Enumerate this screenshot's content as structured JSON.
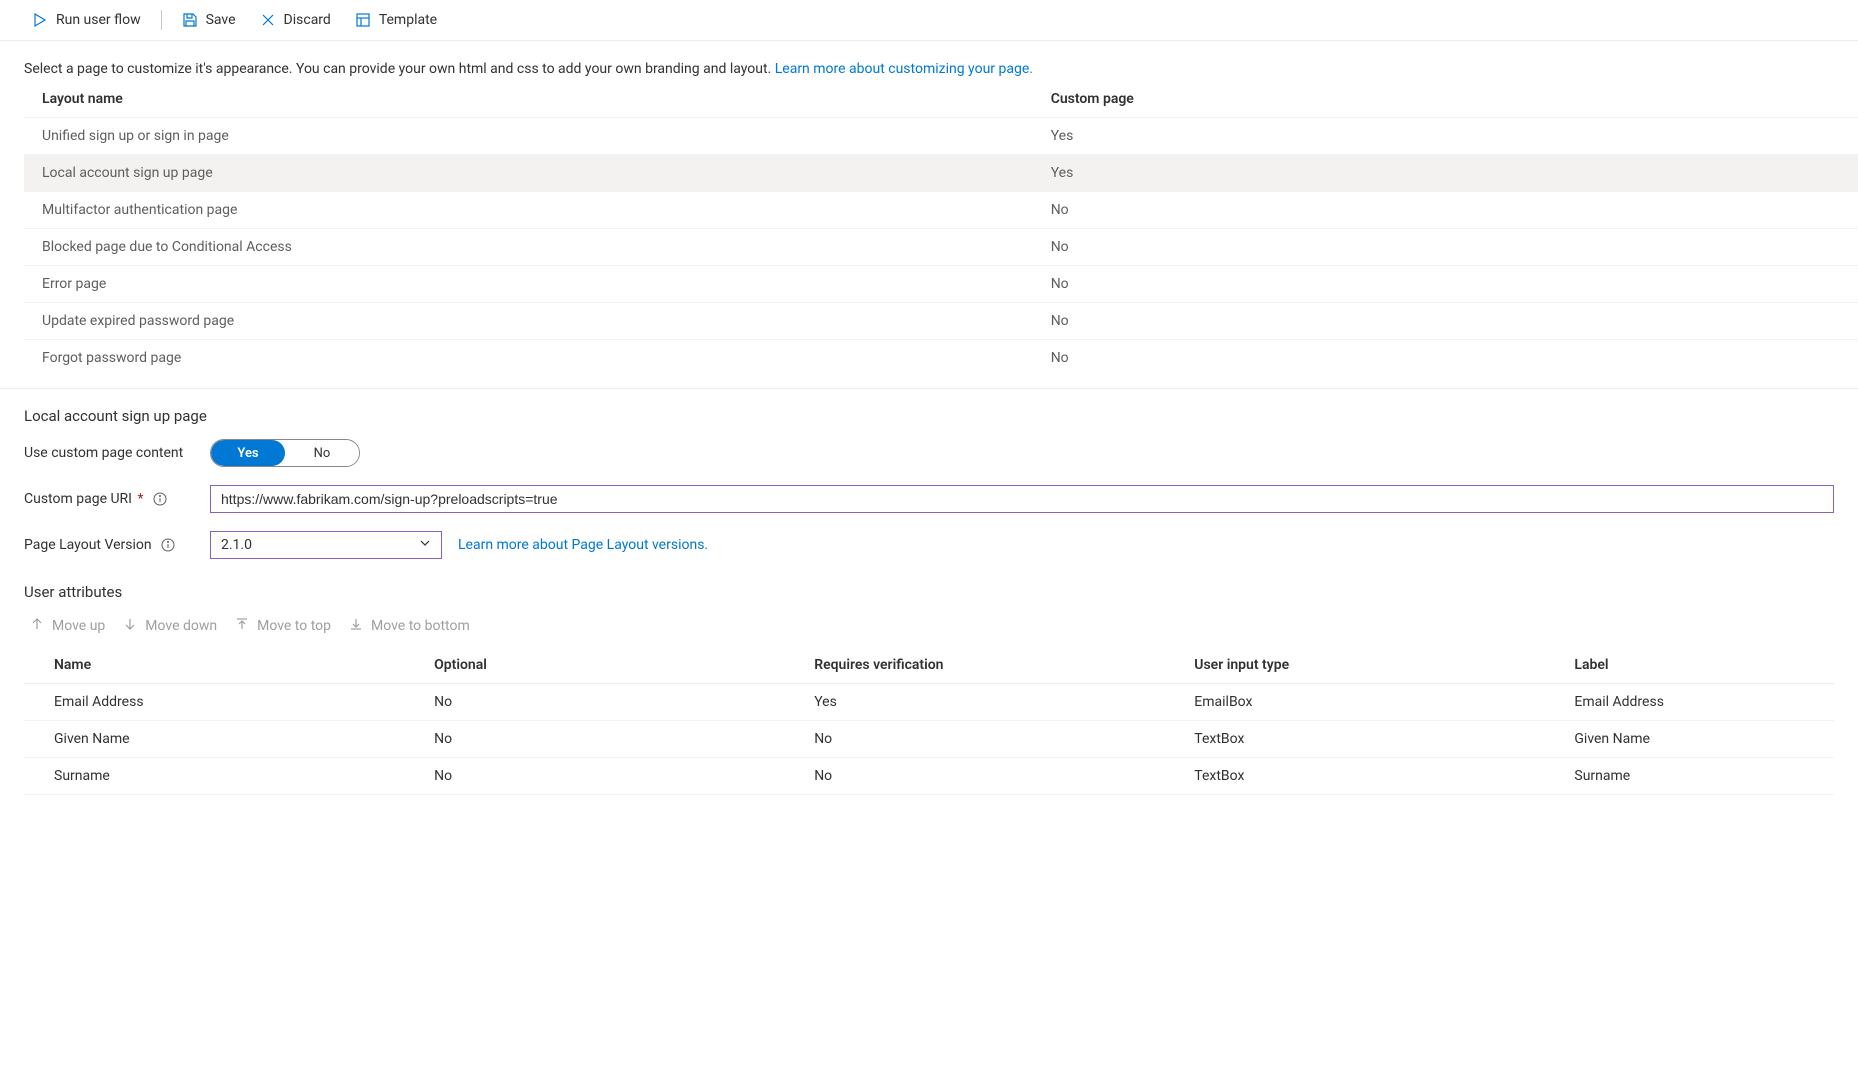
{
  "toolbar": {
    "run_label": "Run user flow",
    "save_label": "Save",
    "discard_label": "Discard",
    "template_label": "Template"
  },
  "intro": {
    "text": "Select a page to customize it's appearance. You can provide your own html and css to add your own branding and layout. ",
    "link_text": "Learn more about customizing your page."
  },
  "layout_table": {
    "columns": [
      "Layout name",
      "Custom page"
    ],
    "rows": [
      {
        "name": "Unified sign up or sign in page",
        "custom": "Yes",
        "selected": false
      },
      {
        "name": "Local account sign up page",
        "custom": "Yes",
        "selected": true
      },
      {
        "name": "Multifactor authentication page",
        "custom": "No",
        "selected": false
      },
      {
        "name": "Blocked page due to Conditional Access",
        "custom": "No",
        "selected": false
      },
      {
        "name": "Error page",
        "custom": "No",
        "selected": false
      },
      {
        "name": "Update expired password page",
        "custom": "No",
        "selected": false
      },
      {
        "name": "Forgot password page",
        "custom": "No",
        "selected": false
      }
    ]
  },
  "detail": {
    "title": "Local account sign up page",
    "use_custom_label": "Use custom page content",
    "toggle_yes": "Yes",
    "toggle_no": "No",
    "toggle_value": "Yes",
    "uri_label": "Custom page URI",
    "uri_value": "https://www.fabrikam.com/sign-up?preloadscripts=true",
    "version_label": "Page Layout Version",
    "version_value": "2.1.0",
    "version_link": "Learn more about Page Layout versions."
  },
  "attributes": {
    "title": "User attributes",
    "toolbar": {
      "move_up": "Move up",
      "move_down": "Move down",
      "move_top": "Move to top",
      "move_bottom": "Move to bottom"
    },
    "columns": [
      "Name",
      "Optional",
      "Requires verification",
      "User input type",
      "Label"
    ],
    "rows": [
      {
        "name": "Email Address",
        "optional": "No",
        "requires": "Yes",
        "type": "EmailBox",
        "label": "Email Address"
      },
      {
        "name": "Given Name",
        "optional": "No",
        "requires": "No",
        "type": "TextBox",
        "label": "Given Name"
      },
      {
        "name": "Surname",
        "optional": "No",
        "requires": "No",
        "type": "TextBox",
        "label": "Surname"
      }
    ]
  },
  "colors": {
    "link": "#0078d4",
    "accent_border": "#8661c5"
  }
}
